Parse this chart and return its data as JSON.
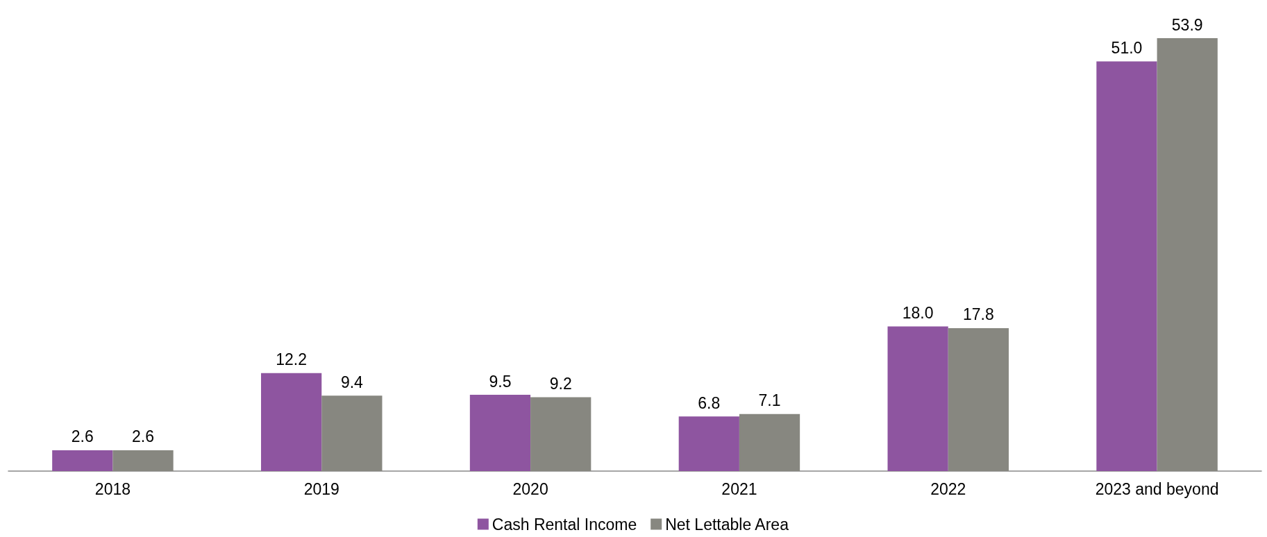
{
  "chart_data": {
    "type": "bar",
    "categories": [
      "2018",
      "2019",
      "2020",
      "2021",
      "2022",
      "2023 and beyond"
    ],
    "series": [
      {
        "name": "Cash Rental Income",
        "color": "#8e55a0",
        "values": [
          2.6,
          12.2,
          9.5,
          6.8,
          18.0,
          51.0
        ],
        "value_labels": [
          "2.6",
          "12.2",
          "9.5",
          "6.8",
          "18.0",
          "51.0"
        ]
      },
      {
        "name": "Net Lettable Area",
        "color": "#878780",
        "values": [
          2.6,
          9.4,
          9.2,
          7.1,
          17.8,
          53.9
        ],
        "value_labels": [
          "2.6",
          "9.4",
          "9.2",
          "7.1",
          "17.8",
          "53.9"
        ]
      }
    ],
    "legend": "bottom",
    "grid": false
  }
}
